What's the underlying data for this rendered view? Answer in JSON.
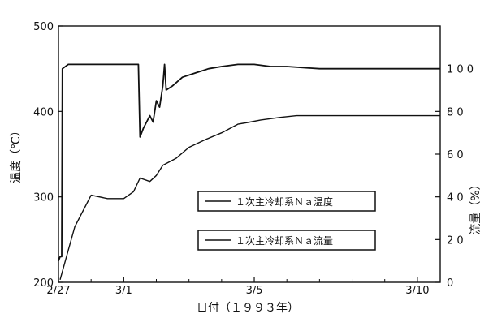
{
  "chart_data": {
    "type": "line",
    "xlabel": "日付（１９９３年）",
    "ylabel_left": "温度（℃）",
    "ylabel_right": "流量（%）",
    "x_ticks": [
      "2/27",
      "3/1",
      "3/5",
      "3/10"
    ],
    "x_tick_values": [
      0,
      2,
      6,
      11
    ],
    "xlim": [
      0,
      11.7
    ],
    "ylim_left": [
      200,
      500
    ],
    "y_ticks_left": [
      "200",
      "300",
      "400",
      "500"
    ],
    "ylim_right": [
      0,
      120
    ],
    "y_ticks_right": [
      "0",
      "2 0",
      "4 0",
      "6 0",
      "8 0",
      "1 0 0"
    ],
    "y_tick_values_right": [
      0,
      20,
      40,
      60,
      80,
      100
    ],
    "grid": false,
    "legend_position": "center",
    "series": [
      {
        "name": "１次主冷却系Ｎａ温度",
        "axis": "left",
        "x": [
          0.05,
          0.5,
          1.0,
          1.5,
          2.0,
          2.3,
          2.5,
          2.8,
          3.0,
          3.2,
          3.6,
          4.0,
          4.5,
          5.0,
          5.5,
          5.8,
          6.2,
          6.8,
          7.3,
          8.0,
          9.0,
          10.0,
          11.0,
          11.7
        ],
        "y": [
          203,
          265,
          302,
          298,
          298,
          306,
          322,
          318,
          325,
          337,
          345,
          358,
          367,
          375,
          385,
          387,
          390,
          393,
          395,
          395,
          395,
          395,
          395,
          395
        ]
      },
      {
        "name": "１次主冷却系Ｎａ流量",
        "axis": "right",
        "x": [
          0.0,
          0.05,
          0.1,
          0.12,
          0.3,
          1.0,
          2.0,
          2.45,
          2.5,
          2.6,
          2.8,
          2.9,
          3.0,
          3.1,
          3.2,
          3.25,
          3.3,
          3.5,
          3.8,
          4.2,
          4.6,
          5.0,
          5.5,
          6.0,
          6.5,
          7.0,
          8.0,
          9.0,
          10.0,
          11.0,
          11.7
        ],
        "y": [
          10,
          12,
          12,
          100,
          102,
          102,
          102,
          102,
          68,
          72,
          78,
          75,
          85,
          82,
          92,
          102,
          90,
          92,
          96,
          98,
          100,
          101,
          102,
          102,
          101,
          101,
          100,
          100,
          100,
          100,
          100
        ]
      }
    ]
  }
}
